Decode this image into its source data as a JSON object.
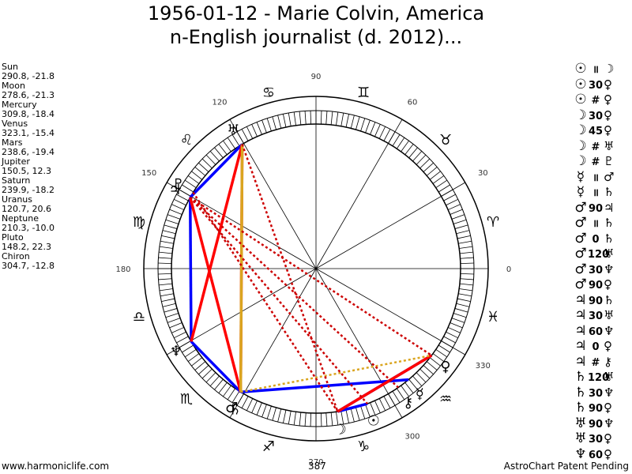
{
  "title": {
    "line1": "1956-01-12 - Marie Colvin, America",
    "line2": "n-English journalist (d. 2012)..."
  },
  "positions": [
    {
      "name": "Sun",
      "coords": "290.8, -21.8",
      "lon": 290.8,
      "glyph": "☉"
    },
    {
      "name": "Moon",
      "coords": "278.6, -21.3",
      "lon": 278.6,
      "glyph": "☽"
    },
    {
      "name": "Mercury",
      "coords": "309.8, -18.4",
      "lon": 309.8,
      "glyph": "☿"
    },
    {
      "name": "Venus",
      "coords": "323.1, -15.4",
      "lon": 323.1,
      "glyph": "♀"
    },
    {
      "name": "Mars",
      "coords": "238.6, -19.4",
      "lon": 238.6,
      "glyph": "♂"
    },
    {
      "name": "Jupiter",
      "coords": "150.5, 12.3",
      "lon": 150.5,
      "glyph": "♃"
    },
    {
      "name": "Saturn",
      "coords": "239.9, -18.2",
      "lon": 239.9,
      "glyph": "♄"
    },
    {
      "name": "Uranus",
      "coords": "120.7, 20.6",
      "lon": 120.7,
      "glyph": "♅"
    },
    {
      "name": "Neptune",
      "coords": "210.3, -10.0",
      "lon": 210.3,
      "glyph": "♆"
    },
    {
      "name": "Pluto",
      "coords": "148.2, 22.3",
      "lon": 148.2,
      "glyph": "♇"
    },
    {
      "name": "Chiron",
      "coords": "304.7, -12.8",
      "lon": 304.7,
      "glyph": "⚷"
    }
  ],
  "degree_labels": [
    {
      "text": "90",
      "deg": 90
    },
    {
      "text": "60",
      "deg": 60
    },
    {
      "text": "30",
      "deg": 30
    },
    {
      "text": "0",
      "deg": 0
    },
    {
      "text": "180",
      "deg": 180
    },
    {
      "text": "120",
      "deg": 120
    },
    {
      "text": "150",
      "deg": 150
    },
    {
      "text": "270",
      "deg": 270
    },
    {
      "text": "300",
      "deg": 300
    },
    {
      "text": "330",
      "deg": 330
    }
  ],
  "signs": [
    {
      "glyph": "♈",
      "deg": 15
    },
    {
      "glyph": "♉",
      "deg": 45
    },
    {
      "glyph": "♊",
      "deg": 75
    },
    {
      "glyph": "♋",
      "deg": 105
    },
    {
      "glyph": "♌",
      "deg": 135
    },
    {
      "glyph": "♍",
      "deg": 165
    },
    {
      "glyph": "♎",
      "deg": 195
    },
    {
      "glyph": "♏",
      "deg": 225
    },
    {
      "glyph": "♐",
      "deg": 255
    },
    {
      "glyph": "♑",
      "deg": 285
    },
    {
      "glyph": "♒",
      "deg": 315
    },
    {
      "glyph": "♓",
      "deg": 345
    }
  ],
  "aspects": [
    {
      "p1": "☉",
      "sym": "॥",
      "p2": "☽"
    },
    {
      "p1": "☉",
      "sym": "30",
      "p2": "♀"
    },
    {
      "p1": "☉",
      "sym": "#",
      "p2": "♀"
    },
    {
      "p1": "☽",
      "sym": "30",
      "p2": "♀"
    },
    {
      "p1": "☽",
      "sym": "45",
      "p2": "♀"
    },
    {
      "p1": "☽",
      "sym": "#",
      "p2": "♅"
    },
    {
      "p1": "☽",
      "sym": "#",
      "p2": "♇"
    },
    {
      "p1": "☿",
      "sym": "॥",
      "p2": "♂"
    },
    {
      "p1": "☿",
      "sym": "॥",
      "p2": "♄"
    },
    {
      "p1": "♂",
      "sym": "90",
      "p2": "♃"
    },
    {
      "p1": "♂",
      "sym": "॥",
      "p2": "♄"
    },
    {
      "p1": "♂",
      "sym": "0",
      "p2": "♄"
    },
    {
      "p1": "♂",
      "sym": "120",
      "p2": "♅"
    },
    {
      "p1": "♂",
      "sym": "30",
      "p2": "♆"
    },
    {
      "p1": "♂",
      "sym": "90",
      "p2": "♀"
    },
    {
      "p1": "♃",
      "sym": "90",
      "p2": "♄"
    },
    {
      "p1": "♃",
      "sym": "30",
      "p2": "♅"
    },
    {
      "p1": "♃",
      "sym": "60",
      "p2": "♆"
    },
    {
      "p1": "♃",
      "sym": "0",
      "p2": "♀"
    },
    {
      "p1": "♃",
      "sym": "#",
      "p2": "⚷"
    },
    {
      "p1": "♄",
      "sym": "120",
      "p2": "♅"
    },
    {
      "p1": "♄",
      "sym": "30",
      "p2": "♆"
    },
    {
      "p1": "♄",
      "sym": "90",
      "p2": "♀"
    },
    {
      "p1": "♅",
      "sym": "90",
      "p2": "♆"
    },
    {
      "p1": "♅",
      "sym": "30",
      "p2": "♀"
    },
    {
      "p1": "♆",
      "sym": "60",
      "p2": "♀"
    }
  ],
  "aspect_lines": [
    {
      "from": "Sun",
      "to": "Moon",
      "color": "#0000ff",
      "style": "solid"
    },
    {
      "from": "Moon",
      "to": "Venus",
      "color": "#0000ff",
      "style": "solid"
    },
    {
      "from": "Uranus",
      "to": "Jupiter",
      "color": "#0000ff",
      "style": "solid"
    },
    {
      "from": "Jupiter",
      "to": "Neptune",
      "color": "#0000ff",
      "style": "solid"
    },
    {
      "from": "Neptune",
      "to": "Mars",
      "color": "#0000ff",
      "style": "solid"
    },
    {
      "from": "Mercury",
      "to": "Mars",
      "color": "#0000ff",
      "style": "solid"
    },
    {
      "from": "Uranus",
      "to": "Mars",
      "color": "#ff0000",
      "style": "solid"
    },
    {
      "from": "Jupiter",
      "to": "Mars",
      "color": "#ff0000",
      "style": "solid"
    },
    {
      "from": "Uranus",
      "to": "Neptune",
      "color": "#ff0000",
      "style": "solid"
    },
    {
      "from": "Moon",
      "to": "Venus",
      "color": "#ff0000",
      "style": "solid"
    },
    {
      "from": "Uranus",
      "to": "Mars",
      "color": "#daa520",
      "style": "solid"
    },
    {
      "from": "Mars",
      "to": "Venus",
      "color": "#daa520",
      "style": "dotted"
    },
    {
      "from": "Uranus",
      "to": "Moon",
      "color": "#cc0000",
      "style": "dotted"
    },
    {
      "from": "Jupiter",
      "to": "Sun",
      "color": "#cc0000",
      "style": "dotted"
    },
    {
      "from": "Jupiter",
      "to": "Venus",
      "color": "#cc0000",
      "style": "dotted"
    },
    {
      "from": "Jupiter",
      "to": "Chiron",
      "color": "#cc0000",
      "style": "dotted"
    },
    {
      "from": "Pluto",
      "to": "Moon",
      "color": "#cc0000",
      "style": "dotted"
    }
  ],
  "colors": {
    "harmonious": "#0000ff",
    "tense": "#ff0000",
    "minor": "#daa520"
  },
  "footer": {
    "left": "www.harmoniclife.com",
    "center": "387",
    "right": "AstroChart Patent Pending"
  }
}
